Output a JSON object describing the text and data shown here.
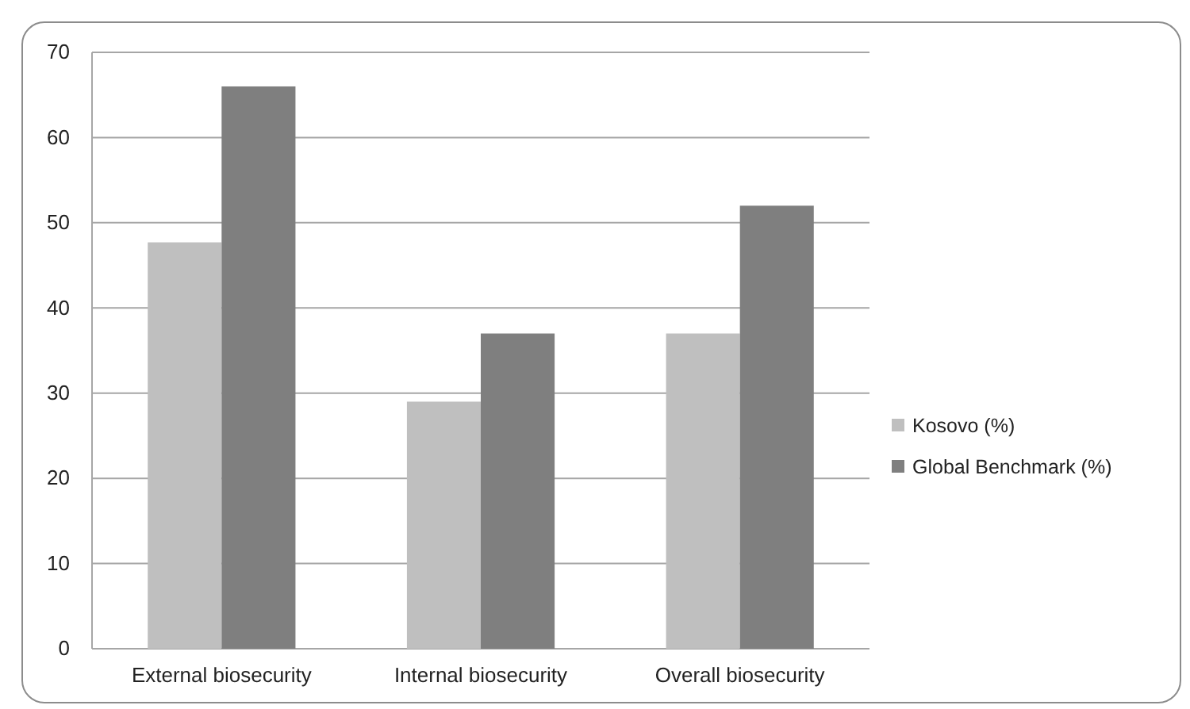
{
  "chart_data": {
    "type": "bar",
    "categories": [
      "External biosecurity",
      "Internal biosecurity",
      "Overall biosecurity"
    ],
    "series": [
      {
        "name": "Kosovo (%)",
        "color": "#bfbfbf",
        "values": [
          47.7,
          29,
          37
        ]
      },
      {
        "name": "Global Benchmark (%)",
        "color": "#7f7f7f",
        "values": [
          66,
          37,
          52
        ]
      }
    ],
    "ylim": [
      0,
      70
    ],
    "yticks": [
      0,
      10,
      20,
      30,
      40,
      50,
      60,
      70
    ],
    "grid": "y",
    "legend": "right"
  }
}
